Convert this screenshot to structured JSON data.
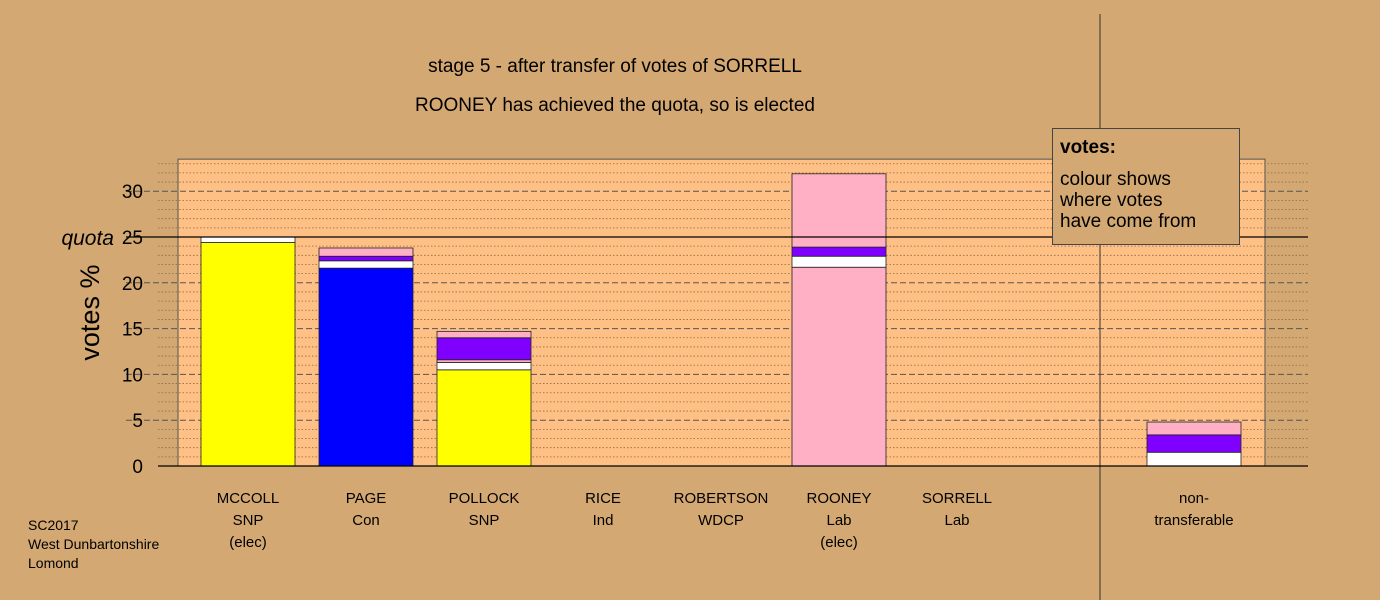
{
  "header": {
    "title": "stage 5 - after transfer of votes of SORRELL",
    "subtitle": "ROONEY has achieved the quota, so is elected"
  },
  "legend": {
    "heading": "votes:",
    "lines": [
      "colour shows",
      "where votes",
      "have come from"
    ]
  },
  "footer": {
    "lines": [
      "SC2017",
      "West Dunbartonshire",
      "Lomond"
    ]
  },
  "colors": {
    "background": "#d4a873",
    "plot_area": "#ffc085",
    "SNP": "#ffff00",
    "Con": "#0000ff",
    "Lab": "#ffb0c4",
    "WDCP": "#8000ff",
    "Ind": "#ffffff"
  },
  "chart_data": {
    "type": "bar",
    "stacked": true,
    "ylabel": "votes %",
    "ylim": [
      0,
      33.5
    ],
    "yticks": [
      0,
      5,
      10,
      15,
      20,
      25,
      30
    ],
    "quota": 25,
    "quota_label": "quota",
    "grid": true,
    "categories": [
      {
        "name": "MCCOLL",
        "party": "SNP",
        "note": "(elec)"
      },
      {
        "name": "PAGE",
        "party": "Con",
        "note": ""
      },
      {
        "name": "POLLOCK",
        "party": "SNP",
        "note": ""
      },
      {
        "name": "RICE",
        "party": "Ind",
        "note": ""
      },
      {
        "name": "ROBERTSON",
        "party": "WDCP",
        "note": ""
      },
      {
        "name": "ROONEY",
        "party": "Lab",
        "note": "(elec)"
      },
      {
        "name": "SORRELL",
        "party": "Lab",
        "note": ""
      },
      {
        "name": "non-\ntransferable",
        "party": "",
        "note": ""
      }
    ],
    "stacks": [
      [
        {
          "source": "SNP",
          "value": 24.4
        },
        {
          "source": "Ind",
          "value": 0.6
        }
      ],
      [
        {
          "source": "Con",
          "value": 21.6
        },
        {
          "source": "Ind",
          "value": 0.8
        },
        {
          "source": "WDCP",
          "value": 0.5
        },
        {
          "source": "Lab",
          "value": 0.9
        }
      ],
      [
        {
          "source": "SNP",
          "value": 10.5
        },
        {
          "source": "Ind",
          "value": 0.8
        },
        {
          "source": "Lab",
          "value": 0.3
        },
        {
          "source": "WDCP",
          "value": 2.4
        },
        {
          "source": "Lab",
          "value": 0.7
        }
      ],
      [],
      [],
      [
        {
          "source": "Lab",
          "value": 21.7
        },
        {
          "source": "Ind",
          "value": 1.2
        },
        {
          "source": "WDCP",
          "value": 1.0
        },
        {
          "source": "Lab",
          "value": 8.0
        }
      ],
      [],
      [
        {
          "source": "Ind",
          "value": 1.5
        },
        {
          "source": "WDCP",
          "value": 1.9
        },
        {
          "source": "Lab",
          "value": 1.4
        }
      ]
    ]
  }
}
